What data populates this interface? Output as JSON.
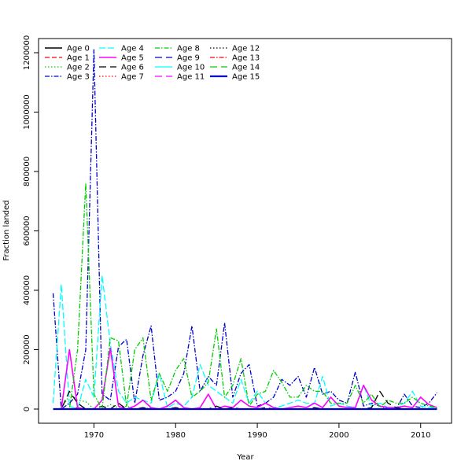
{
  "chart_data": {
    "type": "line",
    "title": "",
    "xlabel": "Year",
    "ylabel": "Fraction landed",
    "xlim": [
      1965,
      2012
    ],
    "ylim": [
      0,
      1200000
    ],
    "x_ticks": [
      "1970",
      "1980",
      "1990",
      "2000",
      "2010"
    ],
    "y_ticks": [
      "0",
      "200000",
      "400000",
      "600000",
      "800000",
      "1000000",
      "1200000"
    ],
    "legend_position": "top-left",
    "x": [
      1965,
      1966,
      1967,
      1968,
      1969,
      1970,
      1971,
      1972,
      1973,
      1974,
      1975,
      1976,
      1977,
      1978,
      1979,
      1980,
      1981,
      1982,
      1983,
      1984,
      1985,
      1986,
      1987,
      1988,
      1989,
      1990,
      1991,
      1992,
      1993,
      1994,
      1995,
      1996,
      1997,
      1998,
      1999,
      2000,
      2001,
      2002,
      2003,
      2004,
      2005,
      2006,
      2007,
      2008,
      2009,
      2010,
      2011,
      2012
    ],
    "series": [
      {
        "name": "Age 0",
        "color": "#000000",
        "dash": "solid",
        "width": 1.6,
        "values": [
          0,
          0,
          0,
          0,
          0,
          0,
          0,
          0,
          0,
          0,
          0,
          0,
          0,
          0,
          0,
          0,
          0,
          0,
          0,
          0,
          0,
          0,
          0,
          0,
          0,
          0,
          0,
          0,
          0,
          0,
          0,
          0,
          0,
          0,
          0,
          0,
          0,
          0,
          0,
          0,
          0,
          0,
          0,
          0,
          0,
          0,
          0,
          0
        ]
      },
      {
        "name": "Age 1",
        "color": "#ff0000",
        "dash": "6,3",
        "width": 1.3,
        "values": [
          0,
          0,
          0,
          5000,
          0,
          0,
          2000,
          0,
          1000,
          0,
          0,
          0,
          1000,
          0,
          0,
          0,
          0,
          0,
          0,
          0,
          0,
          0,
          0,
          0,
          0,
          0,
          0,
          0,
          0,
          0,
          0,
          0,
          0,
          0,
          0,
          0,
          0,
          0,
          0,
          0,
          0,
          0,
          0,
          0,
          0,
          0,
          0,
          0
        ]
      },
      {
        "name": "Age 2",
        "color": "#00cd00",
        "dash": "1.5,2.5",
        "width": 1.3,
        "values": [
          0,
          2000,
          45000,
          30000,
          25000,
          0,
          0,
          15000,
          5000,
          10000,
          0,
          0,
          5000,
          0,
          0,
          0,
          0,
          0,
          0,
          0,
          0,
          0,
          0,
          0,
          0,
          0,
          0,
          0,
          0,
          0,
          0,
          0,
          0,
          0,
          0,
          0,
          0,
          0,
          0,
          0,
          0,
          0,
          0,
          0,
          0,
          0,
          0,
          0
        ]
      },
      {
        "name": "Age 3",
        "color": "#0000cd",
        "dash": "6,2,1.5,2",
        "width": 1.3,
        "values": [
          390000,
          0,
          20000,
          50000,
          200000,
          1210000,
          50000,
          30000,
          210000,
          235000,
          20000,
          180000,
          280000,
          30000,
          40000,
          60000,
          120000,
          280000,
          60000,
          110000,
          80000,
          290000,
          40000,
          120000,
          150000,
          10000,
          20000,
          40000,
          100000,
          80000,
          110000,
          40000,
          140000,
          50000,
          60000,
          30000,
          20000,
          125000,
          10000,
          20000,
          10000,
          0,
          0,
          50000,
          10000,
          5000,
          20000,
          55000
        ]
      },
      {
        "name": "Age 4",
        "color": "#00ffff",
        "dash": "8,3",
        "width": 1.3,
        "values": [
          20000,
          420000,
          10000,
          0,
          100000,
          40000,
          450000,
          220000,
          60000,
          20000,
          40000,
          30000,
          20000,
          120000,
          5000,
          20000,
          10000,
          40000,
          150000,
          80000,
          60000,
          40000,
          20000,
          100000,
          20000,
          60000,
          20000,
          5000,
          10000,
          20000,
          30000,
          20000,
          20000,
          110000,
          10000,
          20000,
          10000,
          5000,
          80000,
          10000,
          20000,
          5000,
          5000,
          20000,
          60000,
          10000,
          5000,
          5000
        ]
      },
      {
        "name": "Age 5",
        "color": "#ff00ff",
        "dash": "solid",
        "width": 1.6,
        "values": [
          0,
          0,
          200000,
          5000,
          0,
          0,
          30000,
          205000,
          10000,
          0,
          10000,
          30000,
          5000,
          0,
          10000,
          30000,
          5000,
          0,
          5000,
          50000,
          0,
          10000,
          5000,
          30000,
          10000,
          5000,
          20000,
          5000,
          0,
          5000,
          10000,
          5000,
          20000,
          5000,
          40000,
          10000,
          5000,
          5000,
          80000,
          30000,
          10000,
          5000,
          5000,
          10000,
          5000,
          40000,
          15000,
          5000
        ]
      },
      {
        "name": "Age 6",
        "color": "#000000",
        "dash": "9,5",
        "width": 1.3,
        "values": [
          0,
          0,
          60000,
          20000,
          0,
          0,
          10000,
          0,
          20000,
          0,
          0,
          5000,
          0,
          0,
          0,
          5000,
          0,
          0,
          0,
          0,
          10000,
          0,
          5000,
          0,
          0,
          0,
          5000,
          0,
          0,
          0,
          0,
          0,
          5000,
          0,
          0,
          0,
          0,
          0,
          0,
          5000,
          60000,
          20000,
          5000,
          0,
          0,
          0,
          0,
          0
        ]
      },
      {
        "name": "Age 7",
        "color": "#ff0000",
        "dash": "1.5,2.5",
        "width": 1.3,
        "values": [
          0,
          0,
          0,
          0,
          0,
          0,
          0,
          0,
          0,
          0,
          0,
          0,
          0,
          0,
          0,
          0,
          0,
          0,
          0,
          0,
          0,
          0,
          0,
          0,
          0,
          0,
          0,
          0,
          0,
          0,
          0,
          0,
          0,
          0,
          0,
          0,
          0,
          0,
          0,
          0,
          0,
          0,
          0,
          0,
          0,
          0,
          0,
          0
        ]
      },
      {
        "name": "Age 8",
        "color": "#00cd00",
        "dash": "6,2,1.5,2",
        "width": 1.3,
        "values": [
          0,
          0,
          0,
          200000,
          760000,
          50000,
          0,
          240000,
          230000,
          10000,
          200000,
          240000,
          30000,
          120000,
          60000,
          130000,
          170000,
          40000,
          60000,
          90000,
          270000,
          40000,
          80000,
          170000,
          10000,
          50000,
          60000,
          130000,
          90000,
          40000,
          40000,
          80000,
          60000,
          60000,
          20000,
          20000,
          20000,
          80000,
          20000,
          50000,
          5000,
          30000,
          20000,
          20000,
          40000,
          20000,
          10000,
          5000
        ]
      },
      {
        "name": "Age 9",
        "color": "#0000cd",
        "dash": "9,5",
        "width": 1.3,
        "values": [
          0,
          0,
          0,
          0,
          0,
          0,
          0,
          0,
          0,
          0,
          0,
          0,
          0,
          0,
          0,
          0,
          0,
          0,
          0,
          0,
          0,
          0,
          0,
          0,
          0,
          0,
          0,
          0,
          0,
          0,
          0,
          0,
          0,
          0,
          0,
          0,
          0,
          0,
          0,
          0,
          0,
          0,
          0,
          0,
          0,
          0,
          0,
          0
        ]
      },
      {
        "name": "Age 10",
        "color": "#00ffff",
        "dash": "solid",
        "width": 1.3,
        "values": [
          0,
          0,
          0,
          0,
          0,
          0,
          0,
          0,
          0,
          0,
          0,
          0,
          0,
          0,
          0,
          0,
          0,
          0,
          0,
          0,
          0,
          0,
          0,
          0,
          0,
          0,
          0,
          0,
          0,
          0,
          0,
          0,
          0,
          0,
          0,
          0,
          0,
          0,
          0,
          0,
          0,
          0,
          0,
          0,
          0,
          0,
          0,
          0
        ]
      },
      {
        "name": "Age 11",
        "color": "#ff00ff",
        "dash": "9,5",
        "width": 1.3,
        "values": [
          0,
          0,
          0,
          0,
          0,
          0,
          0,
          0,
          0,
          0,
          0,
          0,
          0,
          0,
          0,
          0,
          0,
          0,
          0,
          0,
          0,
          0,
          0,
          0,
          0,
          0,
          0,
          0,
          0,
          0,
          0,
          0,
          0,
          0,
          0,
          0,
          0,
          0,
          0,
          0,
          0,
          0,
          0,
          0,
          0,
          0,
          0,
          0
        ]
      },
      {
        "name": "Age 12",
        "color": "#000000",
        "dash": "1.5,2.5",
        "width": 1.3,
        "values": [
          0,
          0,
          0,
          0,
          0,
          0,
          0,
          0,
          0,
          0,
          0,
          0,
          0,
          0,
          0,
          0,
          0,
          0,
          0,
          0,
          0,
          0,
          0,
          0,
          0,
          0,
          0,
          0,
          0,
          0,
          0,
          0,
          0,
          0,
          0,
          0,
          0,
          0,
          0,
          0,
          0,
          0,
          0,
          0,
          0,
          0,
          0,
          0
        ]
      },
      {
        "name": "Age 13",
        "color": "#ff0000",
        "dash": "6,2,1.5,2",
        "width": 1.3,
        "values": [
          0,
          0,
          0,
          0,
          0,
          0,
          0,
          0,
          0,
          0,
          0,
          0,
          0,
          0,
          0,
          0,
          0,
          0,
          0,
          0,
          0,
          0,
          0,
          0,
          0,
          0,
          0,
          0,
          0,
          0,
          0,
          0,
          0,
          0,
          0,
          0,
          0,
          0,
          0,
          0,
          0,
          0,
          0,
          0,
          0,
          0,
          0,
          0
        ]
      },
      {
        "name": "Age 14",
        "color": "#00cd00",
        "dash": "9,5",
        "width": 1.3,
        "values": [
          0,
          0,
          0,
          0,
          0,
          0,
          0,
          0,
          0,
          0,
          0,
          0,
          0,
          0,
          0,
          0,
          0,
          0,
          0,
          0,
          0,
          0,
          0,
          0,
          0,
          0,
          0,
          0,
          0,
          0,
          0,
          0,
          0,
          0,
          0,
          0,
          0,
          0,
          0,
          0,
          0,
          0,
          0,
          0,
          0,
          0,
          0,
          0
        ]
      },
      {
        "name": "Age 15",
        "color": "#0000cd",
        "dash": "solid",
        "width": 2.2,
        "values": [
          0,
          0,
          0,
          0,
          0,
          0,
          0,
          0,
          0,
          0,
          0,
          0,
          0,
          0,
          0,
          0,
          0,
          0,
          0,
          0,
          0,
          0,
          0,
          0,
          0,
          0,
          0,
          0,
          0,
          0,
          0,
          0,
          0,
          0,
          0,
          0,
          0,
          0,
          0,
          0,
          0,
          0,
          0,
          0,
          0,
          0,
          0,
          0
        ]
      }
    ]
  }
}
